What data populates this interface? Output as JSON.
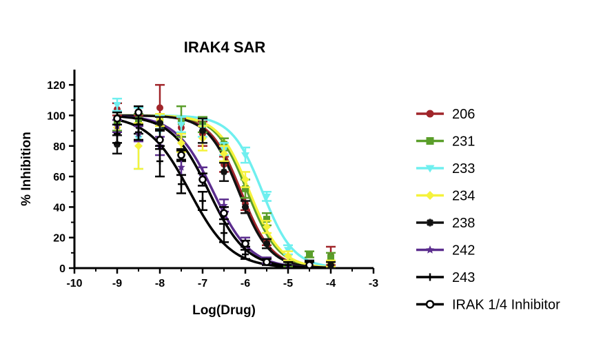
{
  "chart_data": {
    "type": "line",
    "title": "IRAK4 SAR",
    "xlabel": "Log(Drug)",
    "ylabel": "% Inhibition",
    "xlim": [
      -10,
      -3
    ],
    "ylim": [
      0,
      130
    ],
    "x_ticks": [
      "-10",
      "-9",
      "-8",
      "-7",
      "-6",
      "-5",
      "-4",
      "-3"
    ],
    "y_ticks": [
      "0",
      "20",
      "40",
      "60",
      "80",
      "100",
      "120"
    ],
    "grid": false,
    "legend_position": "right",
    "series": [
      {
        "name": "206",
        "color": "#a0252a",
        "marker": "circle",
        "top": 100,
        "bottom": 0,
        "logIC50": -6.1,
        "hill": 1.2,
        "points": [
          [
            -9,
            104,
            4
          ],
          [
            -8.5,
            97,
            3
          ],
          [
            -8,
            105,
            15
          ],
          [
            -7.5,
            92,
            6
          ],
          [
            -7,
            88,
            8
          ],
          [
            -6.5,
            68,
            5
          ],
          [
            -6,
            42,
            4
          ],
          [
            -5.5,
            17,
            2
          ],
          [
            -5,
            3,
            2
          ],
          [
            -4,
            8,
            6
          ]
        ]
      },
      {
        "name": "231",
        "color": "#5a9e2a",
        "marker": "square",
        "top": 100,
        "bottom": 0,
        "logIC50": -5.95,
        "hill": 1.2,
        "points": [
          [
            -9,
            96,
            6
          ],
          [
            -8.5,
            97,
            4
          ],
          [
            -8,
            96,
            5
          ],
          [
            -7.5,
            96,
            10
          ],
          [
            -7,
            94,
            5
          ],
          [
            -6.5,
            81,
            4
          ],
          [
            -6,
            52,
            6
          ],
          [
            -5.5,
            32,
            4
          ],
          [
            -5,
            3,
            2
          ],
          [
            -4.5,
            9,
            2
          ],
          [
            -4,
            7,
            3
          ]
        ]
      },
      {
        "name": "233",
        "color": "#6fefef",
        "marker": "triangle-down",
        "top": 100,
        "bottom": 0,
        "logIC50": -5.6,
        "hill": 1.2,
        "points": [
          [
            -9,
            107,
            4
          ],
          [
            -8.5,
            85,
            20
          ],
          [
            -8,
            90,
            10
          ],
          [
            -7.5,
            94,
            5
          ],
          [
            -7,
            92,
            6
          ],
          [
            -6.5,
            78,
            4
          ],
          [
            -6,
            74,
            5
          ],
          [
            -5.5,
            47,
            3
          ],
          [
            -5,
            12,
            3
          ],
          [
            -4.5,
            3,
            2
          ]
        ]
      },
      {
        "name": "234",
        "color": "#f5f23c",
        "marker": "diamond",
        "top": 100,
        "bottom": 0,
        "logIC50": -5.9,
        "hill": 1.2,
        "points": [
          [
            -9,
            92,
            5
          ],
          [
            -8.5,
            80,
            15
          ],
          [
            -8,
            97,
            4
          ],
          [
            -7.5,
            82,
            6
          ],
          [
            -7,
            85,
            8
          ],
          [
            -6.5,
            75,
            5
          ],
          [
            -6,
            58,
            5
          ],
          [
            -5.5,
            27,
            4
          ],
          [
            -5,
            8,
            3
          ],
          [
            -4,
            3,
            2
          ]
        ]
      },
      {
        "name": "238",
        "color": "#111111",
        "marker": "asterisk",
        "top": 100,
        "bottom": 0,
        "logIC50": -6.15,
        "hill": 1.2,
        "points": [
          [
            -9,
            81,
            6
          ],
          [
            -8.5,
            93,
            5
          ],
          [
            -8,
            95,
            4
          ],
          [
            -7.5,
            74,
            4
          ],
          [
            -7,
            90,
            8
          ],
          [
            -6.5,
            63,
            6
          ],
          [
            -6,
            40,
            4
          ],
          [
            -5.5,
            16,
            3
          ],
          [
            -4.5,
            3,
            2
          ],
          [
            -4,
            2,
            2
          ]
        ]
      },
      {
        "name": "242",
        "color": "#5b2d8e",
        "marker": "star",
        "top": 100,
        "bottom": 0,
        "logIC50": -6.75,
        "hill": 1.0,
        "points": [
          [
            -9,
            93,
            4
          ],
          [
            -8.5,
            88,
            5
          ],
          [
            -8,
            80,
            6
          ],
          [
            -7.5,
            66,
            5
          ],
          [
            -7,
            60,
            6
          ],
          [
            -6.5,
            41,
            4
          ],
          [
            -6,
            17,
            3
          ],
          [
            -5.5,
            5,
            2
          ],
          [
            -5,
            2,
            2
          ]
        ]
      },
      {
        "name": "243",
        "color": "#000000",
        "marker": "plus",
        "top": 100,
        "bottom": 0,
        "logIC50": -7.3,
        "hill": 0.9,
        "points": [
          [
            -9,
            88,
            6
          ],
          [
            -8.5,
            89,
            5
          ],
          [
            -8,
            70,
            10
          ],
          [
            -7.5,
            55,
            6
          ],
          [
            -7,
            44,
            6
          ],
          [
            -6.5,
            23,
            6
          ],
          [
            -6,
            9,
            3
          ],
          [
            -5,
            2,
            2
          ]
        ]
      },
      {
        "name": "IRAK 1/4 Inhibitor",
        "color": "#000000",
        "marker": "open-circle",
        "top": 100,
        "bottom": 0,
        "logIC50": -6.85,
        "hill": 1.0,
        "points": [
          [
            -9,
            98,
            4
          ],
          [
            -8.5,
            102,
            4
          ],
          [
            -8,
            84,
            6
          ],
          [
            -7.5,
            74,
            3
          ],
          [
            -7,
            58,
            4
          ],
          [
            -6.5,
            36,
            4
          ],
          [
            -6,
            16,
            2
          ],
          [
            -5.5,
            4,
            2
          ],
          [
            -4.5,
            2,
            2
          ]
        ]
      }
    ]
  }
}
